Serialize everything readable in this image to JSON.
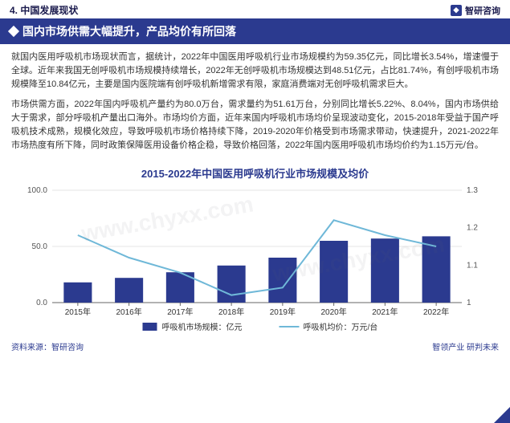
{
  "header": {
    "section": "4. 中国发展现状",
    "brand": "智研咨询"
  },
  "title": "国内市场供需大幅提升，产品均价有所回落",
  "paragraphs": [
    "就国内医用呼吸机市场现状而言，据统计，2022年中国医用呼吸机行业市场规模约为59.35亿元，同比增长3.54%，增速慢于全球。近年来我国无创呼吸机市场规模持续增长，2022年无创呼吸机市场规模达到48.51亿元，占比81.74%，有创呼吸机市场规模降至10.84亿元，主要是国内医院端有创呼吸机新增需求有限，家庭消费端对无创呼吸机需求巨大。",
    "市场供需方面，2022年国内呼吸机产量约为80.0万台，需求量约为51.61万台，分别同比增长5.22%、8.04%，国内市场供给大于需求，部分呼吸机产量出口海外。市场均价方面，近年来国内呼吸机市场均价呈现波动变化，2015-2018年受益于国产呼吸机技术成熟，规模化效应，导致呼吸机市场价格持续下降，2019-2020年价格受到市场需求带动，快速提升，2021-2022年市场热度有所下降，同时政策保障医用设备价格企稳，导致价格回落，2022年国内医用呼吸机市场均价约为1.15万元/台。"
  ],
  "chart": {
    "title": "2015-2022年中国医用呼吸机行业市场规模及均价",
    "categories": [
      "2015年",
      "2016年",
      "2017年",
      "2018年",
      "2019年",
      "2020年",
      "2021年",
      "2022年"
    ],
    "bar_values": [
      18,
      22,
      27,
      33,
      40,
      55,
      57,
      59
    ],
    "line_values": [
      1.18,
      1.12,
      1.08,
      1.02,
      1.04,
      1.22,
      1.18,
      1.15
    ],
    "y_left": {
      "min": 0,
      "max": 100,
      "ticks": [
        0.0,
        50.0,
        100.0
      ]
    },
    "y_right": {
      "min": 1.0,
      "max": 1.3,
      "ticks": [
        1.0,
        1.1,
        1.2,
        1.3
      ],
      "labels": [
        "1",
        "1.1",
        "1.2",
        "1.3"
      ]
    },
    "bar_color": "#2b3a8f",
    "line_color": "#6fb8d8",
    "grid_color": "#cccccc",
    "axis_color": "#666666",
    "legend": {
      "bar": "呼吸机市场规模：亿元",
      "line": "呼吸机均价：万元/台"
    }
  },
  "watermark": "www.chyxx.com",
  "footer": {
    "source": "资料来源：智研咨询",
    "slogan": "智领产业 研判未来"
  }
}
